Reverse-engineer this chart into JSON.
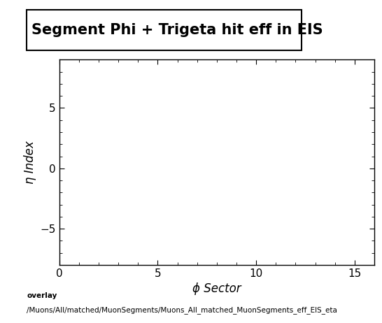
{
  "title": "Segment Phi + Trigeta hit eff in EIS",
  "xlabel": "ϕ Sector",
  "ylabel": "η Index",
  "xlim": [
    0,
    16
  ],
  "ylim": [
    -8,
    9
  ],
  "xticks": [
    0,
    5,
    10,
    15
  ],
  "yticks": [
    -5,
    0,
    5
  ],
  "background_color": "#ffffff",
  "plot_bg_color": "#ffffff",
  "footer_line1": "overlay",
  "footer_line2": "/Muons/All/matched/MuonSegments/Muons_All_matched_MuonSegments_eff_EIS_eta",
  "title_fontsize": 15,
  "axis_label_fontsize": 12,
  "tick_fontsize": 11,
  "footer_fontsize": 7.5
}
